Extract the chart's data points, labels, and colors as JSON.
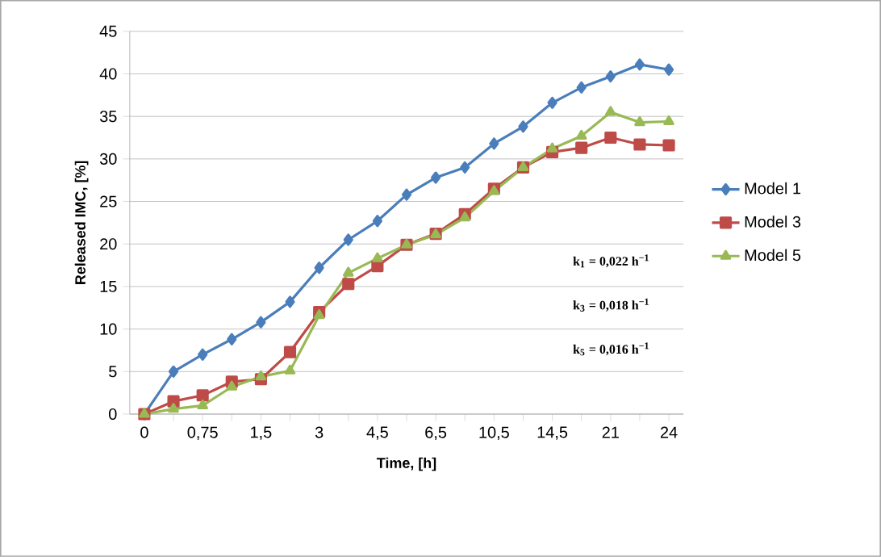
{
  "chart_data": {
    "type": "line",
    "xlabel": "Time, [h]",
    "ylabel": "Released IMC, [%]",
    "categories": [
      "0",
      null,
      "0,75",
      null,
      "1,5",
      null,
      "3",
      null,
      "4,5",
      null,
      "6,5",
      null,
      "10,5",
      null,
      "14,5",
      null,
      "21",
      null,
      "24"
    ],
    "series": [
      {
        "name": "Model 1",
        "color": "#4a7ebb",
        "marker": "diamond",
        "values": [
          0,
          5,
          7,
          8.8,
          10.8,
          13.2,
          17.2,
          20.5,
          22.7,
          25.8,
          27.8,
          29,
          31.8,
          33.8,
          36.6,
          38.4,
          39.7,
          41.1,
          40.5
        ]
      },
      {
        "name": "Model 3",
        "color": "#be4b48",
        "marker": "square",
        "values": [
          0,
          1.5,
          2.2,
          3.8,
          4.1,
          7.3,
          12,
          15.3,
          17.4,
          19.9,
          21.2,
          23.5,
          26.5,
          29,
          30.8,
          31.3,
          32.5,
          31.7,
          31.6
        ]
      },
      {
        "name": "Model 5",
        "color": "#98b954",
        "marker": "triangle",
        "values": [
          0,
          0.6,
          1,
          3.2,
          4.4,
          5.1,
          11.6,
          16.6,
          18.3,
          19.9,
          21.1,
          23.1,
          26.2,
          29,
          31.2,
          32.7,
          35.5,
          34.3,
          34.4
        ]
      }
    ],
    "ylim": [
      0,
      45
    ],
    "yticks": [
      0,
      5,
      10,
      15,
      20,
      25,
      30,
      35,
      40,
      45
    ],
    "grid": "y",
    "legend": "right",
    "line_style": "solid",
    "annotations": [
      "k$_{1}$ = 0,022 h$^{−1}$",
      "k$_{3}$ = 0,018 h$^{−1}$",
      "k$_{5}$ = 0,016 h$^{−1}$"
    ]
  }
}
